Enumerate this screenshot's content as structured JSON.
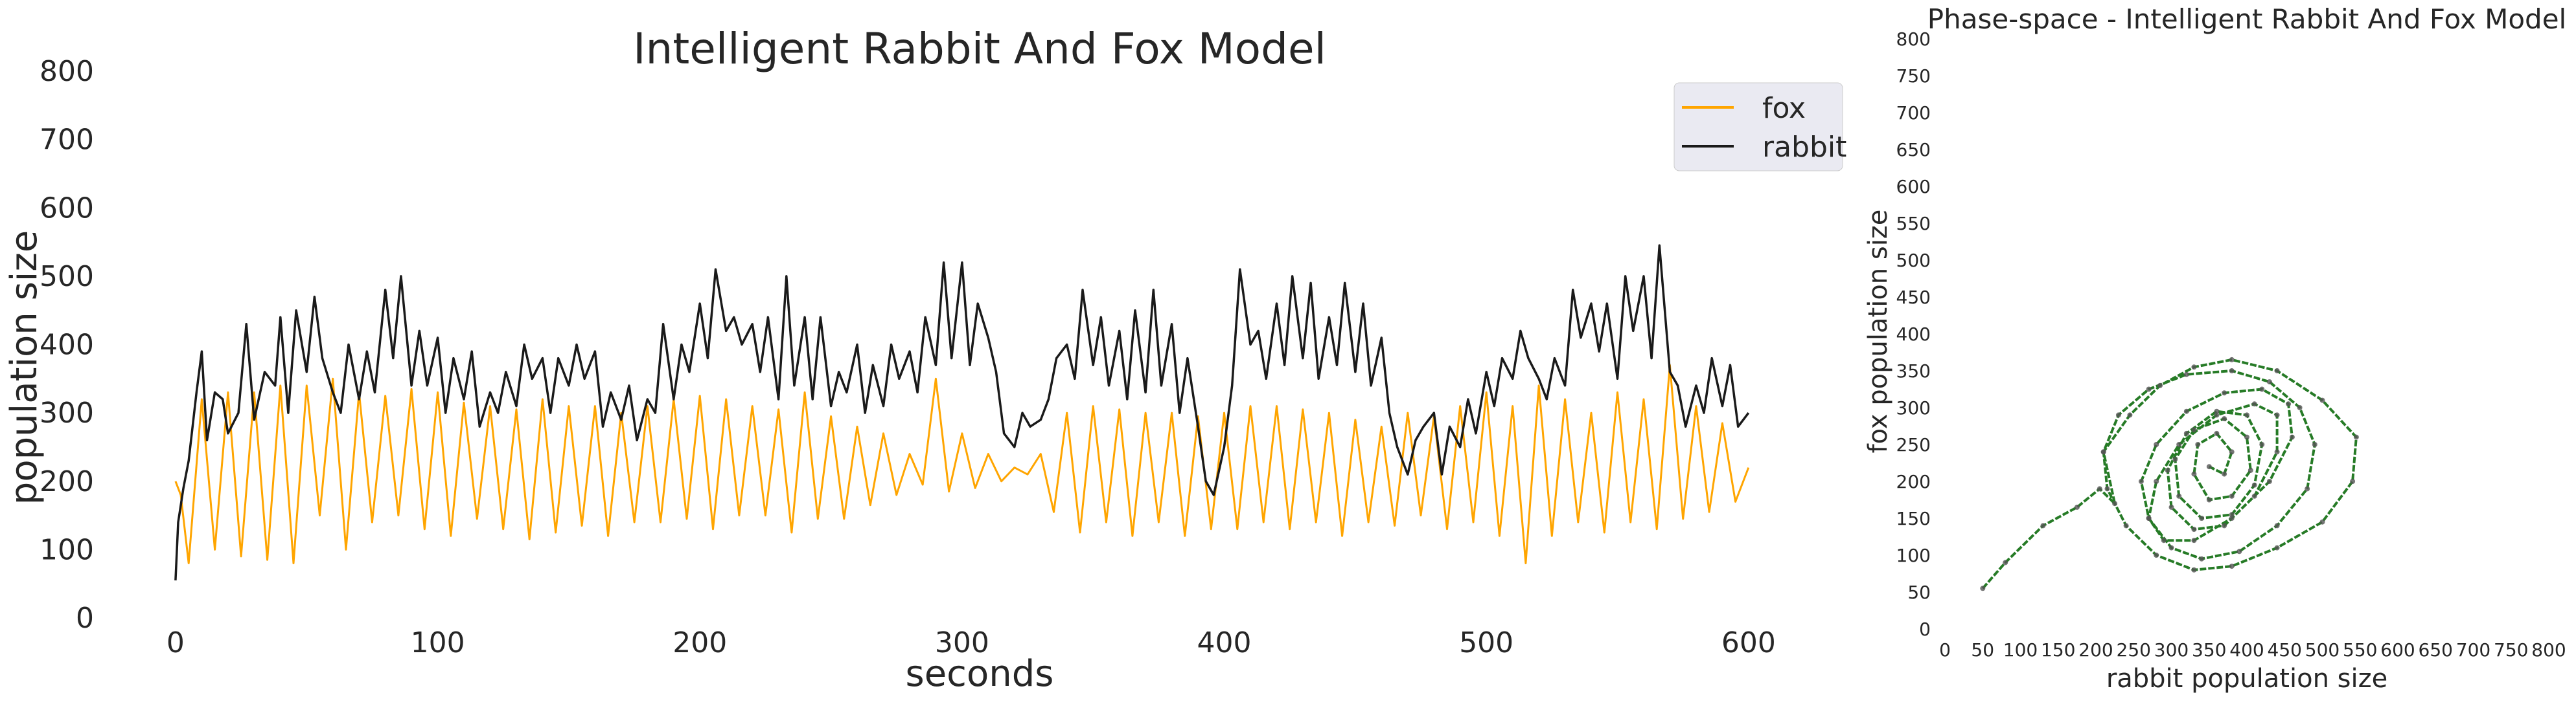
{
  "chart_data": [
    {
      "type": "line",
      "title": "Intelligent Rabbit And Fox Model",
      "xlabel": "seconds",
      "ylabel": "population size",
      "xlim": [
        -20,
        625
      ],
      "ylim": [
        0,
        800
      ],
      "xticks": [
        "0",
        "100",
        "200",
        "300",
        "400",
        "500",
        "600"
      ],
      "xtick_values": [
        0,
        100,
        200,
        300,
        400,
        500,
        600
      ],
      "yticks": [
        "0",
        "100",
        "200",
        "300",
        "400",
        "500",
        "600",
        "700",
        "800"
      ],
      "ytick_values": [
        0,
        100,
        200,
        300,
        400,
        500,
        600,
        700,
        800
      ],
      "grid": false,
      "legend_position": "top-right",
      "series": [
        {
          "name": "fox",
          "color": "#FFA500",
          "description": "oscillation with period about 10 s, peaks about 290-370, troughs about 80-200",
          "x": [
            0,
            2,
            5,
            10,
            15,
            20,
            25,
            30,
            35,
            40,
            45,
            50,
            55,
            60,
            65,
            70,
            75,
            80,
            85,
            90,
            95,
            100,
            105,
            110,
            115,
            120,
            125,
            130,
            135,
            140,
            145,
            150,
            155,
            160,
            165,
            170,
            175,
            180,
            185,
            190,
            195,
            200,
            205,
            210,
            215,
            220,
            225,
            230,
            235,
            240,
            245,
            250,
            255,
            260,
            265,
            270,
            275,
            280,
            285,
            290,
            295,
            300,
            305,
            310,
            315,
            320,
            325,
            330,
            335,
            340,
            345,
            350,
            355,
            360,
            365,
            370,
            375,
            380,
            385,
            390,
            395,
            400,
            405,
            410,
            415,
            420,
            425,
            430,
            435,
            440,
            445,
            450,
            455,
            460,
            465,
            470,
            475,
            480,
            485,
            490,
            495,
            500,
            505,
            510,
            515,
            520,
            525,
            530,
            535,
            540,
            545,
            550,
            555,
            560,
            565,
            570,
            575,
            580,
            585,
            590,
            595,
            600
          ],
          "y": [
            200,
            180,
            80,
            320,
            100,
            330,
            90,
            330,
            85,
            340,
            80,
            340,
            150,
            350,
            100,
            330,
            140,
            325,
            150,
            335,
            130,
            330,
            120,
            315,
            145,
            310,
            130,
            305,
            115,
            320,
            125,
            310,
            135,
            310,
            120,
            300,
            140,
            310,
            140,
            320,
            145,
            325,
            130,
            320,
            150,
            310,
            150,
            305,
            125,
            330,
            145,
            295,
            145,
            280,
            165,
            270,
            180,
            240,
            195,
            350,
            185,
            270,
            190,
            240,
            200,
            220,
            210,
            240,
            155,
            300,
            125,
            310,
            140,
            305,
            120,
            300,
            140,
            300,
            120,
            295,
            130,
            300,
            130,
            310,
            140,
            310,
            130,
            305,
            140,
            300,
            120,
            290,
            140,
            280,
            135,
            300,
            150,
            295,
            130,
            310,
            140,
            330,
            120,
            310,
            80,
            340,
            120,
            320,
            140,
            300,
            125,
            330,
            140,
            320,
            130,
            370,
            145,
            310,
            155,
            285,
            170,
            220
          ]
        },
        {
          "name": "rabbit",
          "color": "#1a1a1a",
          "description": "noisy oscillation around 300-450 with spikes up to about 545",
          "x": [
            0,
            1,
            3,
            5,
            8,
            10,
            12,
            15,
            18,
            20,
            24,
            27,
            30,
            34,
            38,
            40,
            43,
            46,
            50,
            53,
            56,
            60,
            63,
            66,
            70,
            73,
            76,
            80,
            83,
            86,
            90,
            93,
            96,
            100,
            103,
            106,
            110,
            113,
            116,
            120,
            123,
            126,
            130,
            133,
            136,
            140,
            143,
            146,
            150,
            153,
            156,
            160,
            163,
            166,
            170,
            173,
            176,
            180,
            183,
            186,
            190,
            193,
            196,
            200,
            203,
            206,
            210,
            213,
            216,
            220,
            223,
            226,
            230,
            233,
            236,
            240,
            243,
            246,
            250,
            253,
            256,
            260,
            263,
            266,
            270,
            273,
            276,
            280,
            283,
            286,
            290,
            293,
            296,
            300,
            303,
            306,
            310,
            313,
            316,
            320,
            323,
            326,
            330,
            333,
            336,
            340,
            343,
            346,
            350,
            353,
            356,
            360,
            363,
            366,
            370,
            373,
            376,
            380,
            383,
            386,
            390,
            393,
            396,
            400,
            403,
            406,
            410,
            413,
            416,
            420,
            423,
            426,
            430,
            433,
            436,
            440,
            443,
            446,
            450,
            453,
            456,
            460,
            463,
            466,
            470,
            473,
            476,
            480,
            483,
            486,
            490,
            493,
            496,
            500,
            503,
            506,
            510,
            513,
            516,
            520,
            523,
            526,
            530,
            533,
            536,
            540,
            543,
            546,
            550,
            553,
            556,
            560,
            563,
            566,
            570,
            573,
            576,
            580,
            583,
            586,
            590,
            593,
            596,
            600
          ],
          "y": [
            55,
            140,
            190,
            230,
            330,
            390,
            260,
            330,
            320,
            270,
            300,
            430,
            290,
            360,
            340,
            440,
            300,
            450,
            360,
            470,
            380,
            330,
            300,
            400,
            320,
            390,
            330,
            480,
            380,
            500,
            340,
            420,
            340,
            410,
            300,
            380,
            320,
            390,
            280,
            330,
            300,
            360,
            310,
            400,
            350,
            380,
            300,
            380,
            340,
            400,
            350,
            390,
            280,
            330,
            290,
            340,
            260,
            320,
            300,
            430,
            320,
            400,
            360,
            460,
            380,
            510,
            420,
            440,
            400,
            430,
            360,
            440,
            320,
            500,
            340,
            440,
            320,
            440,
            310,
            360,
            330,
            400,
            300,
            370,
            310,
            400,
            350,
            390,
            330,
            440,
            370,
            520,
            380,
            520,
            370,
            460,
            410,
            360,
            270,
            250,
            300,
            280,
            290,
            320,
            380,
            400,
            350,
            480,
            370,
            440,
            340,
            420,
            320,
            450,
            330,
            480,
            340,
            430,
            300,
            380,
            280,
            200,
            180,
            250,
            340,
            510,
            400,
            420,
            350,
            460,
            370,
            500,
            380,
            490,
            350,
            440,
            370,
            490,
            360,
            460,
            340,
            410,
            300,
            250,
            210,
            260,
            280,
            300,
            210,
            280,
            250,
            320,
            270,
            360,
            310,
            380,
            350,
            420,
            380,
            350,
            320,
            380,
            340,
            480,
            410,
            460,
            390,
            460,
            350,
            500,
            420,
            500,
            380,
            545,
            360,
            340,
            280,
            340,
            300,
            380,
            310,
            370,
            280,
            300
          ]
        }
      ]
    },
    {
      "type": "scatter",
      "title": "Phase-space - Intelligent Rabbit And Fox Model",
      "xlabel": "rabbit population size",
      "ylabel": "fox population size",
      "xlim": [
        0,
        800
      ],
      "ylim": [
        0,
        800
      ],
      "xticks": [
        "0",
        "50",
        "100",
        "150",
        "200",
        "250",
        "300",
        "350",
        "400",
        "450",
        "500",
        "550",
        "600",
        "650",
        "700",
        "750",
        "800"
      ],
      "yticks": [
        "0",
        "50",
        "100",
        "150",
        "200",
        "250",
        "300",
        "350",
        "400",
        "450",
        "500",
        "550",
        "600",
        "650",
        "700",
        "750",
        "800"
      ],
      "tick_values": [
        0,
        50,
        100,
        150,
        200,
        250,
        300,
        350,
        400,
        450,
        500,
        550,
        600,
        650,
        700,
        750,
        800
      ],
      "grid": false,
      "line_color": "#006400",
      "marker_color": "#555555",
      "description": "trajectory enters at (50, 55) and forms a dense cycling cluster around x 210-550, y 70-370, centred near (350, 230)",
      "x": [
        50,
        80,
        130,
        175,
        205,
        225,
        210,
        245,
        285,
        330,
        380,
        440,
        500,
        545,
        540,
        500,
        440,
        380,
        330,
        280,
        240,
        215,
        210,
        230,
        270,
        320,
        380,
        430,
        470,
        490,
        480,
        440,
        390,
        340,
        300,
        270,
        260,
        280,
        320,
        370,
        420,
        455,
        460,
        430,
        380,
        330,
        290,
        270,
        280,
        310,
        360,
        410,
        440,
        440,
        410,
        370,
        330,
        300,
        295,
        320,
        360,
        400,
        420,
        410,
        380,
        340,
        310,
        305,
        330,
        370,
        400,
        405,
        380,
        350,
        330,
        335,
        360,
        380,
        370,
        350
      ],
      "y": [
        55,
        90,
        140,
        165,
        190,
        170,
        240,
        290,
        330,
        355,
        365,
        350,
        310,
        260,
        200,
        145,
        110,
        85,
        80,
        100,
        140,
        190,
        240,
        290,
        325,
        345,
        350,
        335,
        300,
        250,
        190,
        140,
        105,
        95,
        110,
        150,
        200,
        250,
        295,
        320,
        325,
        305,
        260,
        200,
        150,
        120,
        120,
        150,
        200,
        250,
        290,
        305,
        290,
        240,
        180,
        140,
        135,
        165,
        215,
        265,
        295,
        290,
        250,
        195,
        155,
        150,
        180,
        230,
        270,
        285,
        260,
        215,
        180,
        175,
        210,
        250,
        265,
        240,
        210,
        220
      ]
    }
  ]
}
